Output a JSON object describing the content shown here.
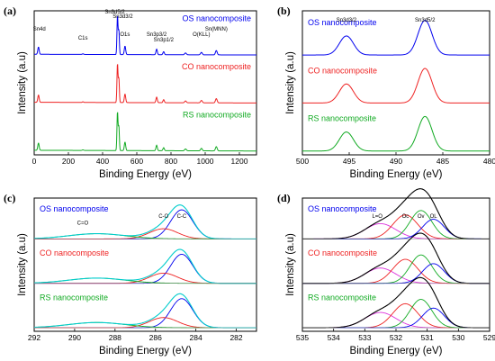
{
  "chart_data": [
    {
      "panel": "(a)",
      "type": "line",
      "xlabel": "Binding Energy (eV)",
      "ylabel": "Intensity (a.u)",
      "xlim": [
        0,
        1300
      ],
      "x_ticks": [
        "0",
        "200",
        "400",
        "600",
        "800",
        "1000",
        "1200"
      ],
      "x_reversed": false,
      "series": [
        {
          "name": "OS nanocomposite",
          "color": "#0000ee"
        },
        {
          "name": "CO nanocomposite",
          "color": "#ee2222"
        },
        {
          "name": "RS nanocomposite",
          "color": "#11aa22"
        }
      ],
      "peaks": [
        {
          "x": 25,
          "h": 0.6,
          "w": 4
        },
        {
          "x": 285,
          "h": 0.05,
          "w": 4
        },
        {
          "x": 487,
          "h": 3.2,
          "w": 3
        },
        {
          "x": 495,
          "h": 2.0,
          "w": 3
        },
        {
          "x": 531,
          "h": 0.7,
          "w": 4
        },
        {
          "x": 716,
          "h": 0.45,
          "w": 4
        },
        {
          "x": 757,
          "h": 0.25,
          "w": 4
        },
        {
          "x": 885,
          "h": 0.15,
          "w": 5
        },
        {
          "x": 978,
          "h": 0.2,
          "w": 5
        },
        {
          "x": 1065,
          "h": 0.35,
          "w": 5
        }
      ],
      "annotations": [
        {
          "text": "Sn4d",
          "x": 30
        },
        {
          "text": "C1s",
          "x": 285
        },
        {
          "text": "Sn3d5/2",
          "x": 487
        },
        {
          "text": "Sn3d3/2",
          "x": 497
        },
        {
          "text": "O1s",
          "x": 531
        },
        {
          "text": "Sn3p3/2",
          "x": 716
        },
        {
          "text": "Sn3p1/2",
          "x": 757
        },
        {
          "text": "O(KLL)",
          "x": 978
        },
        {
          "text": "Sn(MNN)",
          "x": 1065
        }
      ]
    },
    {
      "panel": "(b)",
      "type": "line",
      "xlabel": "Binding Energy (eV)",
      "ylabel": "Intensity (a.u)",
      "xlim": [
        500,
        480
      ],
      "x_ticks": [
        "500",
        "495",
        "490",
        "485",
        "480"
      ],
      "x_reversed": true,
      "series": [
        {
          "name": "OS nanocomposite",
          "color": "#0000ee"
        },
        {
          "name": "CO nanocomposite",
          "color": "#ee2222"
        },
        {
          "name": "RS nanocomposite",
          "color": "#11aa22"
        }
      ],
      "peaks": [
        {
          "x": 495.3,
          "h": 0.55,
          "w": 0.75
        },
        {
          "x": 486.9,
          "h": 1.0,
          "w": 0.75
        }
      ],
      "annotations": [
        {
          "text": "Sn3d3/2",
          "x": 495.3
        },
        {
          "text": "Sn3d5/2",
          "x": 486.9
        }
      ]
    },
    {
      "panel": "(c)",
      "type": "line",
      "xlabel": "Binding Energy (eV)",
      "ylabel": "Intensity (a.u)",
      "xlim": [
        292,
        281
      ],
      "x_ticks": [
        "292",
        "290",
        "288",
        "286",
        "284",
        "282"
      ],
      "x_reversed": true,
      "series": [
        {
          "name": "OS nanocomposite",
          "color": "#0000ee"
        },
        {
          "name": "CO nanocomposite",
          "color": "#ee2222"
        },
        {
          "name": "RS nanocomposite",
          "color": "#11aa22"
        }
      ],
      "components": [
        {
          "label": "C-C",
          "x": 284.7,
          "h": 1.0,
          "w": 0.55,
          "color": "#0000ee"
        },
        {
          "label": "C-O",
          "x": 285.6,
          "h": 0.35,
          "w": 0.7,
          "color": "#ee2222"
        },
        {
          "label": "C=O",
          "x": 288.9,
          "h": 0.18,
          "w": 1.4,
          "color": "#11aa22"
        }
      ],
      "envelope_color": "#00cccc",
      "annotations": [
        {
          "text": "C=O",
          "x": 289.6
        },
        {
          "text": "C-O",
          "x": 285.6
        },
        {
          "text": "C-C",
          "x": 284.7
        }
      ]
    },
    {
      "panel": "(d)",
      "type": "line",
      "xlabel": "Binding Energy (eV)",
      "ylabel": "Intensity (a.u)",
      "xlim": [
        535,
        529
      ],
      "x_ticks": [
        "535",
        "534",
        "533",
        "532",
        "531",
        "530",
        "529"
      ],
      "x_reversed": true,
      "series": [
        {
          "name": "OS nanocomposite",
          "color": "#0000ee"
        },
        {
          "name": "CO nanocomposite",
          "color": "#ee2222"
        },
        {
          "name": "RS nanocomposite",
          "color": "#11aa22"
        }
      ],
      "components": [
        {
          "label": "L=O",
          "x": 532.5,
          "h": 0.35,
          "w": 0.5,
          "color": "#dd33dd"
        },
        {
          "label": "Oc",
          "x": 531.7,
          "h": 0.55,
          "w": 0.4,
          "color": "#ee2222"
        },
        {
          "label": "Ov",
          "x": 531.2,
          "h": 0.65,
          "w": 0.35,
          "color": "#11aa22"
        },
        {
          "label": "OL",
          "x": 530.8,
          "h": 0.45,
          "w": 0.35,
          "color": "#0000ee"
        }
      ],
      "envelope_color": "#000000",
      "annotations": [
        {
          "text": "L=O",
          "x": 532.6
        },
        {
          "text": "Oc",
          "x": 531.7
        },
        {
          "text": "Ov",
          "x": 531.2
        },
        {
          "text": "OL",
          "x": 530.8
        }
      ]
    }
  ]
}
